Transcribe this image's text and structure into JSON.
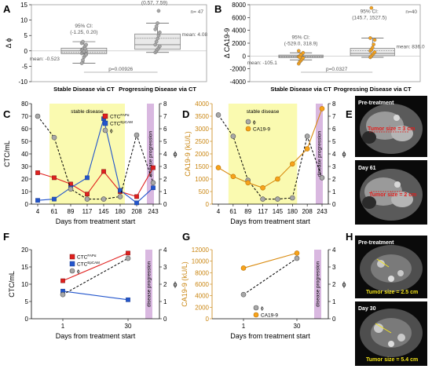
{
  "colors": {
    "red": "#e0201e",
    "blue": "#2255cc",
    "gray": "#a8a8a8",
    "orange": "#f7a21b",
    "orange_dark": "#d98a0e",
    "orange_axis": "#c98510",
    "stable_band": "#fafab0",
    "progression_band": "#d9b8e0"
  },
  "panel_labels": [
    "A",
    "B",
    "C",
    "D",
    "E",
    "F",
    "G",
    "H"
  ],
  "texts": {
    "stable_disease": "stable disease",
    "disease_progression": "disease progression",
    "days_from_treatment": "Days from treatment start",
    "ctc_ml": "CTC/mL",
    "ca199_unit": "CA19-9 (kU/L)",
    "phi": "ϕ",
    "delta_phi": "Δ ϕ",
    "delta_ca199": "Δ CA19-9",
    "stable_via_ct": "Stable Disease via CT",
    "progressing_via_ct": "Progressing Disease via CT",
    "leg_ctc_faps": "CTC",
    "leg_ctc_faps_sup": "FAPα",
    "leg_ctc_epcam": "CTC",
    "leg_ctc_epcam_sup": "EpCAM",
    "leg_phi": "ϕ",
    "leg_ca199": "CA19-9"
  },
  "scans": {
    "E": [
      {
        "title": "Pre-treatment",
        "tumor": "Tumor size = 3 cm"
      },
      {
        "title": "Day 61",
        "tumor": "Tumor size = 2 cm"
      }
    ],
    "H": [
      {
        "title": "Pre-treatment",
        "tumor": "Tumor size = 2.5 cm"
      },
      {
        "title": "Day 30",
        "tumor": "Tumor size = 5.4 cm"
      }
    ]
  },
  "chart_data": [
    {
      "panel": "A",
      "type": "box",
      "ylabel": "Δ ϕ",
      "ylim": [
        -10,
        15
      ],
      "yticks": [
        -10,
        -5,
        0,
        5,
        10,
        15
      ],
      "categories": [
        "Stable Disease via CT",
        "Progressing Disease via CT"
      ],
      "n": "n= 47",
      "groups": [
        {
          "ci": "95% CI:\n(-1.25, 0.20)",
          "mean_label": "mean: -0.523",
          "mean": -0.52,
          "box": [
            -0.9,
            0.9
          ],
          "median": 0,
          "whiskers": [
            -4,
            3
          ],
          "points": [
            -4,
            -3,
            -2,
            -1.5,
            -1,
            -0.8,
            -0.5,
            -0.3,
            0,
            0,
            0.3,
            0.5,
            1,
            1.5,
            2,
            2.5,
            3,
            -0.2,
            0.7,
            -1.2
          ]
        },
        {
          "ci": "95% CI:\n(0.57, 7.59)",
          "mean_label": "mean: 4.08",
          "mean": 4.08,
          "box": [
            0.5,
            5.5
          ],
          "median": 2,
          "whiskers": [
            -0.5,
            9
          ],
          "points": [
            -0.5,
            0,
            0.5,
            1,
            1.5,
            2,
            3,
            4,
            5,
            6,
            7,
            8,
            9,
            13
          ]
        }
      ],
      "p_value": "p=0.00926"
    },
    {
      "panel": "B",
      "type": "box",
      "ylabel": "Δ CA19-9",
      "ylim": [
        -4000,
        8000
      ],
      "yticks": [
        -4000,
        -2000,
        0,
        2000,
        4000,
        6000,
        8000
      ],
      "categories": [
        "Stable Disease via CT",
        "Progressing Disease via CT"
      ],
      "n": "n=40",
      "groups": [
        {
          "ci": "95% CI:\n(-529.0, 318.9)",
          "mean_label": "mean: -105.1",
          "mean": -105,
          "box": [
            -250,
            150
          ],
          "median": 0,
          "whiskers": [
            -600,
            500
          ],
          "points": [
            -1200,
            -900,
            -700,
            -500,
            -300,
            -100,
            0,
            100,
            300,
            500,
            800,
            -200,
            200
          ]
        },
        {
          "ci": "95% CI:\n(145.7, 1527.5)",
          "mean_label": "mean: 836.0",
          "mean": 836,
          "box": [
            50,
            1200
          ],
          "median": 400,
          "whiskers": [
            -200,
            2800
          ],
          "points": [
            -200,
            0,
            200,
            400,
            600,
            800,
            1000,
            1300,
            1800,
            2500,
            2800,
            7500
          ]
        }
      ],
      "p_value": "p=0.0327"
    },
    {
      "panel": "C",
      "type": "line",
      "xlabel": "Days from treatment start",
      "ylabel": "CTC/mL",
      "y2label": "ϕ",
      "x": [
        4,
        61,
        89,
        117,
        145,
        180,
        208,
        243
      ],
      "ylim": [
        0,
        80
      ],
      "yticks": [
        0,
        10,
        20,
        30,
        40,
        50,
        60,
        70,
        80
      ],
      "y2lim": [
        0,
        8
      ],
      "y2ticks": [
        0,
        1,
        2,
        3,
        4,
        5,
        6,
        7,
        8
      ],
      "stable_span": [
        61,
        180
      ],
      "progression_at": 243,
      "series": [
        {
          "name": "CTCFAPα",
          "axis": "left",
          "values": [
            25,
            21,
            16,
            8,
            26,
            10,
            6,
            29
          ]
        },
        {
          "name": "CTCEpCAM",
          "axis": "left",
          "values": [
            3,
            4,
            13,
            21,
            68,
            11,
            1,
            13
          ]
        },
        {
          "name": "ϕ",
          "axis": "right",
          "values": [
            7.0,
            5.3,
            1.2,
            0.4,
            0.4,
            0.6,
            5.5,
            1.7
          ]
        }
      ]
    },
    {
      "panel": "D",
      "type": "line",
      "xlabel": "Days from treatment start",
      "ylabel": "CA19-9 (kU/L)",
      "y2label": "ϕ",
      "x": [
        4,
        61,
        89,
        117,
        145,
        180,
        208,
        243
      ],
      "ylim": [
        0,
        4000
      ],
      "yticks": [
        0,
        500,
        1000,
        1500,
        2000,
        2500,
        3000,
        3500,
        4000
      ],
      "y2lim": [
        0,
        8
      ],
      "y2ticks": [
        0,
        1,
        2,
        3,
        4,
        5,
        6,
        7,
        8
      ],
      "stable_span": [
        61,
        180
      ],
      "progression_at": 243,
      "series": [
        {
          "name": "ϕ",
          "axis": "right",
          "values": [
            7.1,
            5.4,
            1.9,
            0.4,
            0.4,
            0.5,
            5.4,
            2.1
          ]
        },
        {
          "name": "CA19-9",
          "axis": "left",
          "values": [
            1450,
            1100,
            850,
            650,
            1000,
            1600,
            2200,
            3800
          ]
        }
      ]
    },
    {
      "panel": "F",
      "type": "line",
      "xlabel": "Days from treatment start",
      "ylabel": "CTC/mL",
      "y2label": "ϕ",
      "x": [
        1,
        30
      ],
      "ylim": [
        0,
        20
      ],
      "yticks": [
        0,
        5,
        10,
        15,
        20
      ],
      "y2lim": [
        0,
        4
      ],
      "y2ticks": [
        0,
        1,
        2,
        3,
        4
      ],
      "progression_at": 30,
      "series": [
        {
          "name": "CTCFAPα",
          "axis": "left",
          "values": [
            11,
            19
          ]
        },
        {
          "name": "CTCEpCAM",
          "axis": "left",
          "values": [
            8,
            5.5
          ]
        },
        {
          "name": "ϕ",
          "axis": "right",
          "values": [
            1.4,
            3.5
          ]
        }
      ]
    },
    {
      "panel": "G",
      "type": "line",
      "xlabel": "Days from treatment start",
      "ylabel": "CA19-9 (kU/L)",
      "y2label": "ϕ",
      "x": [
        1,
        30
      ],
      "ylim": [
        0,
        12000
      ],
      "yticks": [
        0,
        2000,
        4000,
        6000,
        8000,
        10000,
        12000
      ],
      "y2lim": [
        0,
        4
      ],
      "y2ticks": [
        0,
        1,
        2,
        3,
        4
      ],
      "progression_at": 30,
      "series": [
        {
          "name": "ϕ",
          "axis": "right",
          "values": [
            1.4,
            3.5
          ]
        },
        {
          "name": "CA19-9",
          "axis": "left",
          "values": [
            8800,
            11400
          ]
        }
      ]
    }
  ]
}
